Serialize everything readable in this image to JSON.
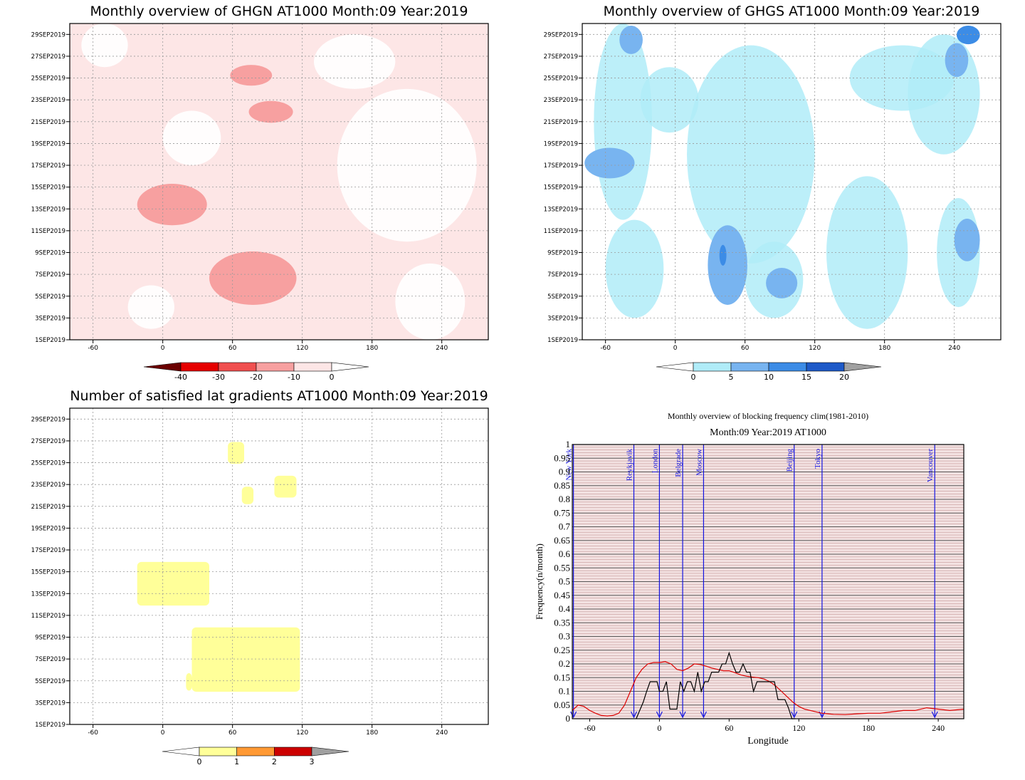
{
  "chart_data": [
    {
      "type": "heatmap",
      "title": "Monthly overview of GHGN AT1000 Month:09 Year:2019",
      "x_ticks": [
        "-60",
        "0",
        "60",
        "120",
        "180",
        "240"
      ],
      "x_tick_values": [
        -60,
        0,
        60,
        120,
        180,
        240
      ],
      "xlim": [
        -80,
        280
      ],
      "y_ticks": [
        "1SEP2019",
        "3SEP2019",
        "5SEP2019",
        "7SEP2019",
        "9SEP2019",
        "11SEP2019",
        "13SEP2019",
        "15SEP2019",
        "17SEP2019",
        "19SEP2019",
        "21SEP2019",
        "23SEP2019",
        "25SEP2019",
        "27SEP2019",
        "29SEP2019"
      ],
      "y_tick_values": [
        1,
        3,
        5,
        7,
        9,
        11,
        13,
        15,
        17,
        19,
        21,
        23,
        25,
        27,
        29
      ],
      "ylim": [
        1,
        30
      ],
      "grid": true,
      "colorbar": {
        "labels": [
          "-40",
          "-30",
          "-20",
          "-10",
          "0"
        ],
        "values": [
          -40,
          -30,
          -20,
          -10,
          0
        ],
        "colors": [
          "#6b0000",
          "#e60000",
          "#f05050",
          "#f7a0a0",
          "#fde6e6",
          "#ffffff"
        ]
      },
      "regions": [
        {
          "level": "-10 to 0",
          "color": "#fde6e6",
          "desc": "background"
        },
        {
          "level": "-20 to -10",
          "color": "#f7a0a0",
          "lon": [
            40,
            115
          ],
          "day": [
            4.2,
            9.1
          ]
        },
        {
          "level": "-20 to -10",
          "color": "#f7a0a0",
          "lon": [
            -22,
            38
          ],
          "day": [
            11.5,
            15.3
          ]
        },
        {
          "level": "-20 to -10",
          "color": "#f7a0a0",
          "lon": [
            74,
            112
          ],
          "day": [
            20.9,
            22.9
          ]
        },
        {
          "level": "-20 to -10",
          "color": "#f7a0a0",
          "lon": [
            58,
            94
          ],
          "day": [
            24.3,
            26.2
          ]
        }
      ]
    },
    {
      "type": "heatmap",
      "title": "Monthly overview of GHGS AT1000 Month:09 Year:2019",
      "x_ticks": [
        "-60",
        "0",
        "60",
        "120",
        "180",
        "240"
      ],
      "x_tick_values": [
        -60,
        0,
        60,
        120,
        180,
        240
      ],
      "xlim": [
        -80,
        280
      ],
      "y_ticks": [
        "1SEP2019",
        "3SEP2019",
        "5SEP2019",
        "7SEP2019",
        "9SEP2019",
        "11SEP2019",
        "13SEP2019",
        "15SEP2019",
        "17SEP2019",
        "19SEP2019",
        "21SEP2019",
        "23SEP2019",
        "25SEP2019",
        "27SEP2019",
        "29SEP2019"
      ],
      "y_tick_values": [
        1,
        3,
        5,
        7,
        9,
        11,
        13,
        15,
        17,
        19,
        21,
        23,
        25,
        27,
        29
      ],
      "ylim": [
        1,
        30
      ],
      "grid": true,
      "colorbar": {
        "labels": [
          "0",
          "5",
          "10",
          "15",
          "20"
        ],
        "values": [
          0,
          5,
          10,
          15,
          20
        ],
        "colors": [
          "#ffffff",
          "#b0ecf8",
          "#78b4f0",
          "#3c8ce6",
          "#1e5ac8",
          "#a0a0a0"
        ]
      },
      "regions": [
        {
          "level": "5 to 10",
          "color": "#78b4f0",
          "lon": [
            28,
            62
          ],
          "day": [
            4.2,
            11.5
          ]
        },
        {
          "level": "5 to 10",
          "color": "#78b4f0",
          "lon": [
            -78,
            -35
          ],
          "day": [
            15.8,
            18.6
          ]
        },
        {
          "level": "5 to 10",
          "color": "#78b4f0",
          "lon": [
            240,
            262
          ],
          "day": [
            8.2,
            12.1
          ]
        },
        {
          "level": "5 to 10",
          "color": "#78b4f0",
          "lon": [
            232,
            252
          ],
          "day": [
            25.1,
            28.2
          ]
        },
        {
          "level": "5 to 10",
          "color": "#78b4f0",
          "lon": [
            -48,
            -28
          ],
          "day": [
            27.2,
            29.8
          ]
        },
        {
          "level": "5 to 10",
          "color": "#78b4f0",
          "lon": [
            78,
            105
          ],
          "day": [
            4.8,
            7.6
          ]
        },
        {
          "level": "10 to 15",
          "color": "#3c8ce6",
          "lon": [
            38,
            44
          ],
          "day": [
            7.8,
            9.7
          ]
        },
        {
          "level": "10 to 15",
          "color": "#3c8ce6",
          "lon": [
            242,
            262
          ],
          "day": [
            28.1,
            29.8
          ]
        }
      ]
    },
    {
      "type": "heatmap",
      "title": "Number of satisfied lat gradients AT1000 Month:09 Year:2019",
      "x_ticks": [
        "-60",
        "0",
        "60",
        "120",
        "180",
        "240"
      ],
      "x_tick_values": [
        -60,
        0,
        60,
        120,
        180,
        240
      ],
      "xlim": [
        -80,
        280
      ],
      "y_ticks": [
        "1SEP2019",
        "3SEP2019",
        "5SEP2019",
        "7SEP2019",
        "9SEP2019",
        "11SEP2019",
        "13SEP2019",
        "15SEP2019",
        "17SEP2019",
        "19SEP2019",
        "21SEP2019",
        "23SEP2019",
        "25SEP2019",
        "27SEP2019",
        "29SEP2019"
      ],
      "y_tick_values": [
        1,
        3,
        5,
        7,
        9,
        11,
        13,
        15,
        17,
        19,
        21,
        23,
        25,
        27,
        29
      ],
      "ylim": [
        1,
        30
      ],
      "grid": true,
      "colorbar": {
        "labels": [
          "0",
          "1",
          "2",
          "3"
        ],
        "values": [
          0,
          1,
          2,
          3
        ],
        "colors": [
          "#ffffff",
          "#ffff99",
          "#ff9933",
          "#cc0000",
          "#a0a0a0"
        ]
      },
      "regions": [
        {
          "level": "0 to 1",
          "color": "#ffff99",
          "lon": [
            -22,
            40
          ],
          "day": [
            11.9,
            15.9
          ]
        },
        {
          "level": "0 to 1",
          "color": "#ffff99",
          "lon": [
            25,
            118
          ],
          "day": [
            4.0,
            9.9
          ]
        },
        {
          "level": "0 to 1",
          "color": "#ffff99",
          "lon": [
            96,
            115
          ],
          "day": [
            21.8,
            23.8
          ]
        },
        {
          "level": "0 to 1",
          "color": "#ffff99",
          "lon": [
            68,
            78
          ],
          "day": [
            21.2,
            22.8
          ]
        },
        {
          "level": "0 to 1",
          "color": "#ffff99",
          "lon": [
            56,
            70
          ],
          "day": [
            24.9,
            26.9
          ]
        },
        {
          "level": "0 to 1",
          "color": "#ffff99",
          "lon": [
            20,
            25
          ],
          "day": [
            4.1,
            5.7
          ]
        }
      ]
    },
    {
      "type": "line",
      "title": "Monthly overview of blocking frequency clim(1981-2010)",
      "subtitle": "Month:09 Year:2019  AT1000",
      "xlabel": "Longitude",
      "ylabel": "Frequency(n/month)",
      "xlim": [
        -75,
        262
      ],
      "ylim": [
        0,
        1
      ],
      "x_ticks": [
        "-60",
        "0",
        "60",
        "120",
        "180",
        "240"
      ],
      "x_tick_values": [
        -60,
        0,
        60,
        120,
        180,
        240
      ],
      "y_ticks": [
        "0",
        "0.05",
        "0.1",
        "0.15",
        "0.2",
        "0.25",
        "0.3",
        "0.35",
        "0.4",
        "0.45",
        "0.5",
        "0.55",
        "0.6",
        "0.65",
        "0.7",
        "0.75",
        "0.8",
        "0.85",
        "0.9",
        "0.95",
        "1"
      ],
      "y_tick_values": [
        0,
        0.05,
        0.1,
        0.15,
        0.2,
        0.25,
        0.3,
        0.35,
        0.4,
        0.45,
        0.5,
        0.55,
        0.6,
        0.65,
        0.7,
        0.75,
        0.8,
        0.85,
        0.9,
        0.95,
        1
      ],
      "cities": [
        {
          "name": "New York",
          "lon": -74
        },
        {
          "name": "Reykjavik",
          "lon": -22
        },
        {
          "name": "London",
          "lon": 0
        },
        {
          "name": "Belgrade",
          "lon": 20
        },
        {
          "name": "Moscow",
          "lon": 38
        },
        {
          "name": "Beijing",
          "lon": 116
        },
        {
          "name": "Tokyo",
          "lon": 140
        },
        {
          "name": "Vancouver",
          "lon": 237
        }
      ],
      "series": [
        {
          "color": "#dd0000",
          "x": [
            -75,
            -70,
            -65,
            -60,
            -55,
            -50,
            -45,
            -40,
            -35,
            -30,
            -25,
            -20,
            -15,
            -10,
            -5,
            0,
            5,
            10,
            15,
            20,
            25,
            30,
            35,
            40,
            45,
            50,
            55,
            60,
            65,
            70,
            75,
            80,
            85,
            90,
            95,
            100,
            105,
            110,
            115,
            120,
            125,
            130,
            135,
            140,
            145,
            150,
            160,
            170,
            180,
            190,
            200,
            210,
            220,
            230,
            240,
            250,
            262
          ],
          "y": [
            0.03,
            0.05,
            0.045,
            0.03,
            0.02,
            0.012,
            0.01,
            0.012,
            0.02,
            0.05,
            0.1,
            0.15,
            0.18,
            0.2,
            0.205,
            0.205,
            0.208,
            0.2,
            0.18,
            0.175,
            0.185,
            0.2,
            0.198,
            0.192,
            0.185,
            0.18,
            0.175,
            0.175,
            0.168,
            0.16,
            0.155,
            0.152,
            0.15,
            0.145,
            0.135,
            0.12,
            0.1,
            0.08,
            0.06,
            0.045,
            0.035,
            0.03,
            0.025,
            0.02,
            0.018,
            0.016,
            0.015,
            0.018,
            0.02,
            0.02,
            0.025,
            0.03,
            0.03,
            0.04,
            0.035,
            0.03,
            0.035
          ]
        },
        {
          "color": "#000000",
          "x": [
            -20,
            -17,
            -14,
            -11,
            -8,
            -5,
            -2,
            0,
            3,
            6,
            9,
            12,
            15,
            18,
            21,
            24,
            27,
            30,
            33,
            36,
            39,
            42,
            45,
            48,
            51,
            54,
            57,
            60,
            63,
            66,
            69,
            72,
            75,
            78,
            81,
            84,
            87,
            90,
            93,
            96,
            99,
            102,
            105,
            108,
            111,
            114,
            117
          ],
          "y": [
            0.0,
            0.03,
            0.06,
            0.1,
            0.135,
            0.135,
            0.135,
            0.1,
            0.1,
            0.135,
            0.035,
            0.035,
            0.035,
            0.135,
            0.1,
            0.135,
            0.135,
            0.1,
            0.17,
            0.1,
            0.135,
            0.135,
            0.17,
            0.17,
            0.17,
            0.2,
            0.2,
            0.24,
            0.2,
            0.17,
            0.17,
            0.2,
            0.17,
            0.17,
            0.1,
            0.135,
            0.135,
            0.135,
            0.135,
            0.135,
            0.135,
            0.07,
            0.07,
            0.07,
            0.04,
            0.0,
            0.0
          ]
        }
      ]
    }
  ]
}
